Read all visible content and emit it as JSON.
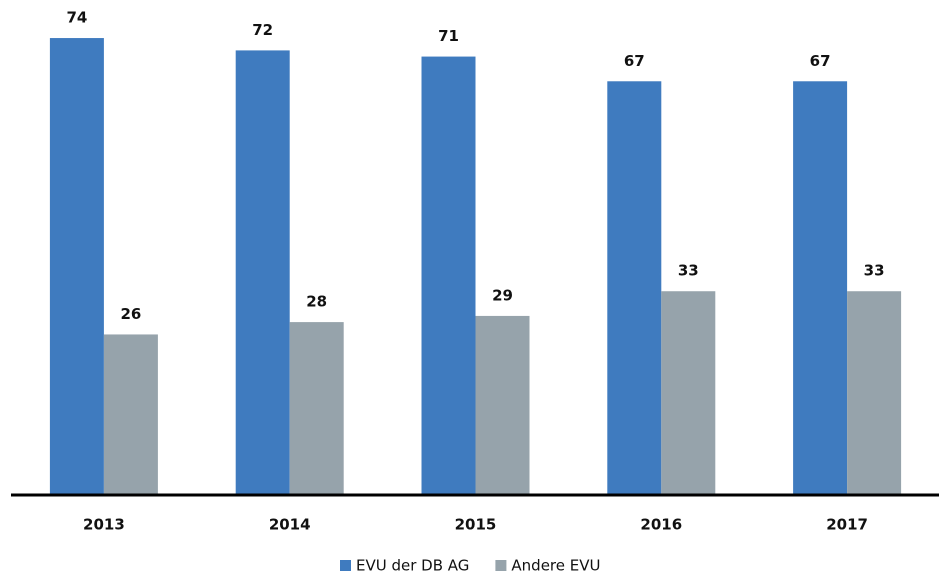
{
  "chart_data": {
    "type": "bar",
    "categories": [
      "2013",
      "2014",
      "2015",
      "2016",
      "2017"
    ],
    "series": [
      {
        "name": "EVU der DB AG",
        "color": "#3f7bbf",
        "values": [
          74,
          72,
          71,
          67,
          67
        ]
      },
      {
        "name": "Andere EVU",
        "color": "#96a3ab",
        "values": [
          26,
          28,
          29,
          33,
          33
        ]
      }
    ],
    "ylim": [
      0,
      80
    ],
    "legend": "bottom"
  }
}
